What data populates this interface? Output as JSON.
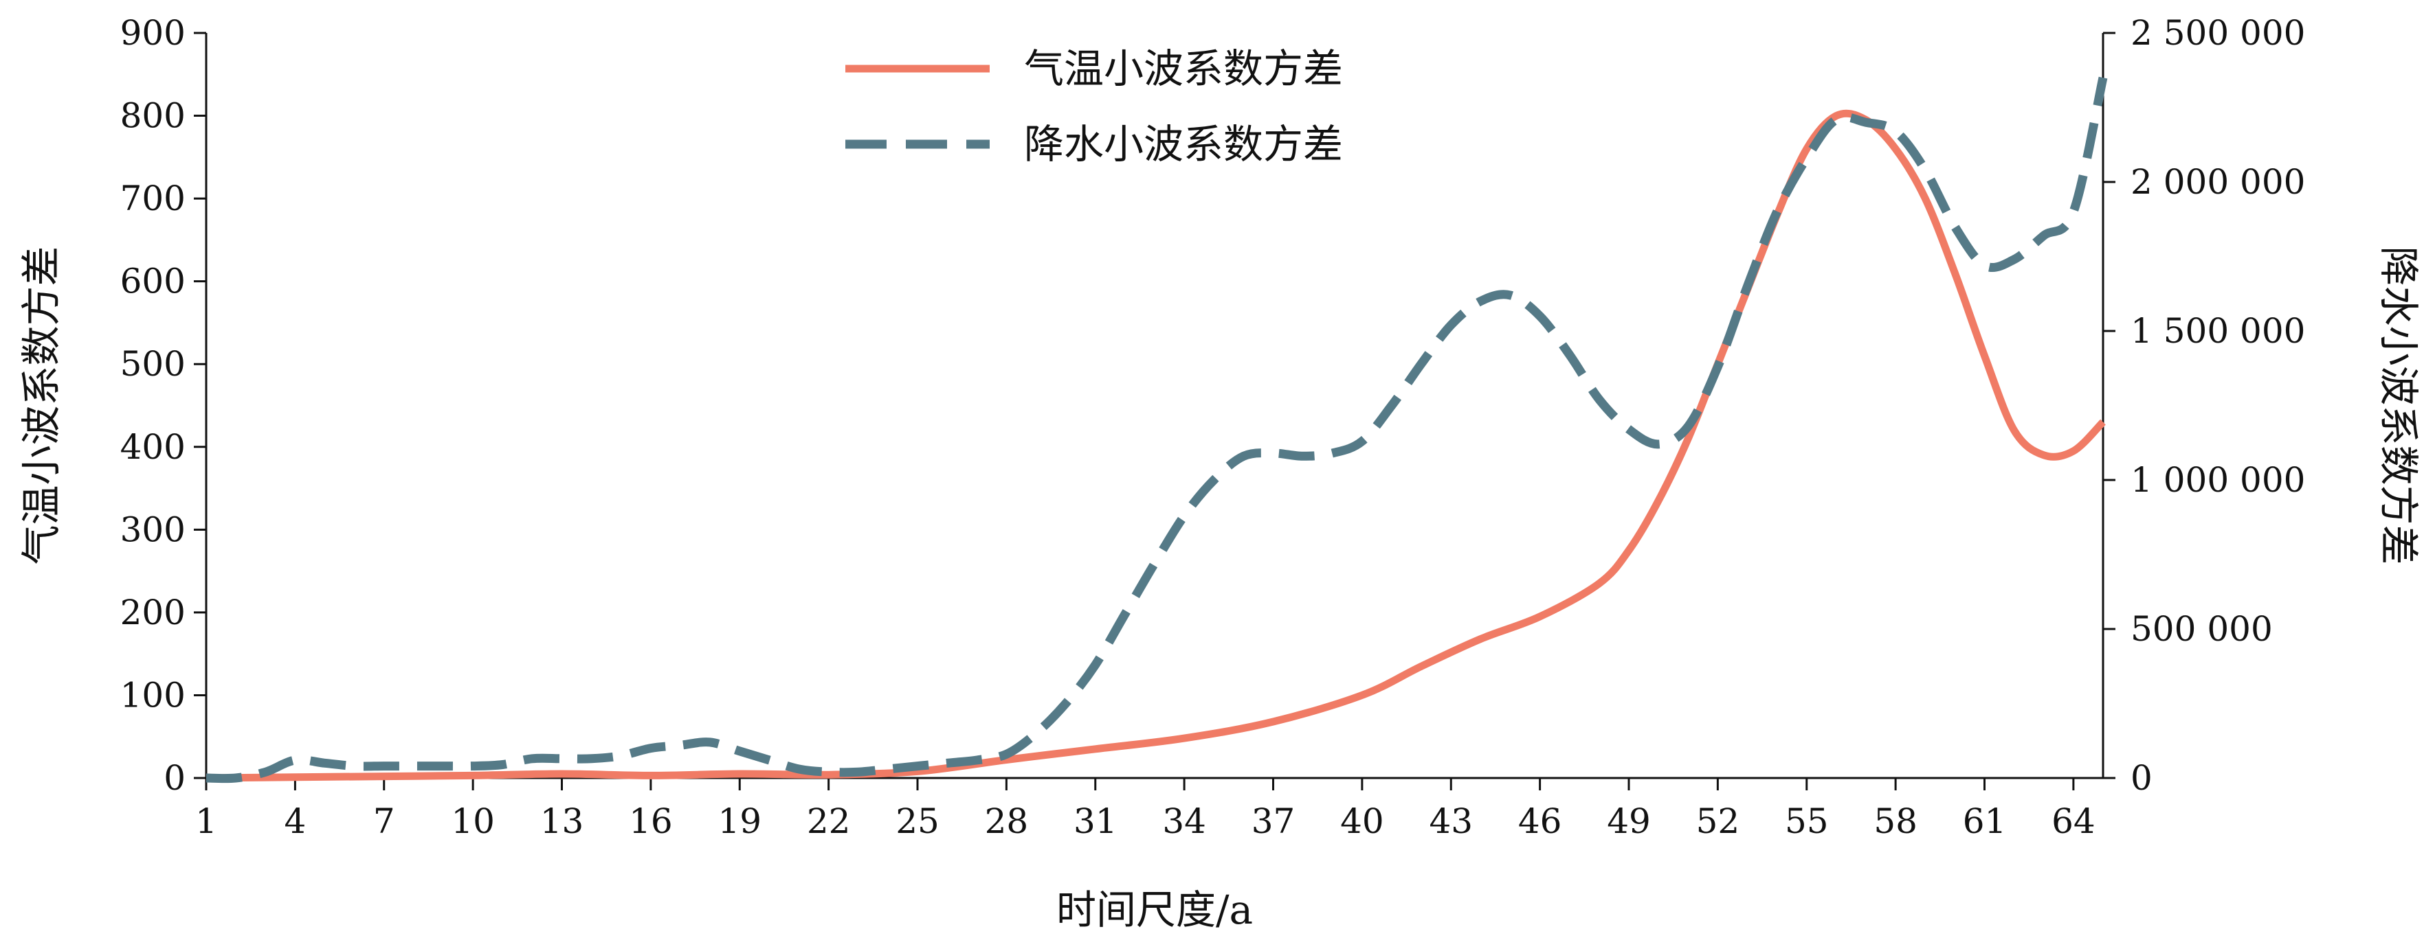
{
  "chart_data": {
    "type": "line",
    "xlabel": "时间尺度/a",
    "ylabel_left": "气温小波系数方差",
    "ylabel_right": "降水小波系数方差",
    "x_ticks": [
      "1",
      "4",
      "7",
      "10",
      "13",
      "16",
      "19",
      "22",
      "25",
      "28",
      "31",
      "34",
      "37",
      "40",
      "43",
      "46",
      "49",
      "52",
      "55",
      "58",
      "61",
      "64"
    ],
    "y_left_ticks": [
      "0",
      "100",
      "200",
      "300",
      "400",
      "500",
      "600",
      "700",
      "800",
      "900"
    ],
    "y_right_ticks": [
      "0",
      "500 000",
      "1 000 000",
      "1 500 000",
      "2 000 000",
      "2 500 000"
    ],
    "ylim_left": [
      0,
      900
    ],
    "ylim_right": [
      0,
      2500000
    ],
    "xlim": [
      1,
      65
    ],
    "legend_position": "top-center",
    "grid": false,
    "series": [
      {
        "name": "气温小波系数方差",
        "axis": "left",
        "style": "solid",
        "color": "#F07B65",
        "x": [
          1,
          4,
          7,
          10,
          13,
          16,
          19,
          22,
          25,
          28,
          31,
          34,
          37,
          40,
          42,
          44,
          46,
          48,
          49,
          50,
          51,
          52,
          53,
          54,
          55,
          56,
          57,
          58,
          59,
          60,
          61,
          62,
          63,
          64,
          65
        ],
        "y": [
          0,
          1,
          2,
          3,
          5,
          3,
          5,
          4,
          8,
          22,
          35,
          48,
          68,
          100,
          135,
          168,
          195,
          235,
          275,
          335,
          410,
          500,
          590,
          680,
          760,
          800,
          795,
          760,
          700,
          610,
          510,
          420,
          390,
          395,
          430
        ]
      },
      {
        "name": "降水小波系数方差",
        "axis": "right",
        "style": "dashed",
        "color": "#557A87",
        "x": [
          1,
          2,
          3,
          4,
          5,
          6,
          7,
          8,
          9,
          10,
          11,
          12,
          13,
          14,
          15,
          16,
          17,
          18,
          19,
          20,
          21,
          22,
          23,
          24,
          25,
          26,
          27,
          28,
          29,
          30,
          31,
          32,
          33,
          34,
          35,
          36,
          37,
          38,
          39,
          40,
          41,
          42,
          43,
          44,
          45,
          46,
          47,
          48,
          49,
          50,
          51,
          52,
          53,
          54,
          55,
          56,
          57,
          58,
          59,
          60,
          61,
          62,
          63,
          64,
          65
        ],
        "y": [
          0,
          0,
          20000,
          60000,
          50000,
          40000,
          40000,
          40000,
          40000,
          40000,
          45000,
          65000,
          65000,
          65000,
          75000,
          100000,
          110000,
          120000,
          90000,
          60000,
          30000,
          20000,
          20000,
          30000,
          40000,
          50000,
          60000,
          80000,
          150000,
          250000,
          380000,
          550000,
          720000,
          880000,
          1000000,
          1080000,
          1090000,
          1080000,
          1090000,
          1130000,
          1250000,
          1390000,
          1520000,
          1600000,
          1620000,
          1550000,
          1420000,
          1270000,
          1170000,
          1120000,
          1180000,
          1380000,
          1650000,
          1900000,
          2080000,
          2210000,
          2200000,
          2170000,
          2040000,
          1850000,
          1720000,
          1740000,
          1820000,
          1900000,
          2350000
        ]
      }
    ]
  }
}
